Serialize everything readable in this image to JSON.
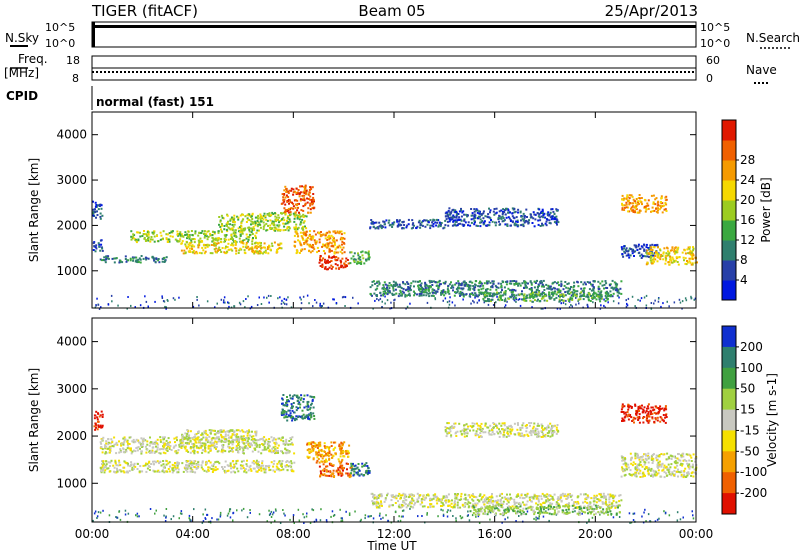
{
  "header": {
    "station": "TIGER (fitACF)",
    "beam": "Beam 05",
    "date": "25/Apr/2013"
  },
  "status_panels": {
    "nsky_label": "N.Sky",
    "nsky_ticks": [
      "10^5",
      "10^0"
    ],
    "nsearch_label": "N.Search",
    "nsearch_ticks": [
      "10^5",
      "10^0"
    ],
    "freq_label_1": "Freq.",
    "freq_label_2": "[MHz]",
    "freq_ticks": [
      "18",
      "8"
    ],
    "nave_label": "Nave",
    "nave_ticks": [
      "60",
      "0"
    ],
    "cpid_label": "CPID",
    "cpid_value": "normal (fast) 151"
  },
  "chart_data": [
    {
      "type": "heatmap",
      "name": "power",
      "ylabel": "Slant Range [km]",
      "ylim": [
        180,
        4500
      ],
      "yticks": [
        "1000",
        "2000",
        "3000",
        "4000"
      ],
      "xlim_hours": [
        0,
        24
      ],
      "colorbar_label": "Power [dB]",
      "colorbar_ticks": [
        "4",
        "8",
        "12",
        "16",
        "20",
        "24",
        "28"
      ],
      "colorbar_colors": [
        "#0018e0",
        "#2840a8",
        "#2f7f6e",
        "#3aa840",
        "#9ccc20",
        "#f5d800",
        "#f59a00",
        "#f06000",
        "#e01800"
      ],
      "features": [
        {
          "t": [
            0.0,
            0.4
          ],
          "r": [
            2150,
            2550
          ],
          "level": 1
        },
        {
          "t": [
            0.0,
            0.4
          ],
          "r": [
            1450,
            1700
          ],
          "level": 1
        },
        {
          "t": [
            0.3,
            3.0
          ],
          "r": [
            1200,
            1350
          ],
          "level": 2
        },
        {
          "t": [
            1.5,
            6.5
          ],
          "r": [
            1650,
            1900
          ],
          "level": 4
        },
        {
          "t": [
            3.5,
            7.5
          ],
          "r": [
            1400,
            1650
          ],
          "level": 5
        },
        {
          "t": [
            5.0,
            8.5
          ],
          "r": [
            1900,
            2300
          ],
          "level": 4
        },
        {
          "t": [
            7.5,
            8.8
          ],
          "r": [
            2300,
            2900
          ],
          "level": 7
        },
        {
          "t": [
            8.0,
            10.0
          ],
          "r": [
            1400,
            1900
          ],
          "level": 6
        },
        {
          "t": [
            9.0,
            10.2
          ],
          "r": [
            1050,
            1350
          ],
          "level": 8
        },
        {
          "t": [
            10.2,
            11.0
          ],
          "r": [
            1150,
            1450
          ],
          "level": 3
        },
        {
          "t": [
            11.0,
            14.0
          ],
          "r": [
            1950,
            2150
          ],
          "level": 1
        },
        {
          "t": [
            14.0,
            18.5
          ],
          "r": [
            2000,
            2400
          ],
          "level": 1
        },
        {
          "t": [
            11.0,
            21.0
          ],
          "r": [
            450,
            800
          ],
          "level": 2
        },
        {
          "t": [
            15.5,
            20.5
          ],
          "r": [
            350,
            550
          ],
          "level": 3
        },
        {
          "t": [
            21.0,
            22.8
          ],
          "r": [
            2300,
            2700
          ],
          "level": 6
        },
        {
          "t": [
            21.0,
            22.5
          ],
          "r": [
            1300,
            1600
          ],
          "level": 1
        },
        {
          "t": [
            22.0,
            24.0
          ],
          "r": [
            1150,
            1550
          ],
          "level": 5
        }
      ]
    },
    {
      "type": "heatmap",
      "name": "velocity",
      "ylabel": "Slant Range [km]",
      "ylim": [
        180,
        4500
      ],
      "yticks": [
        "1000",
        "2000",
        "3000",
        "4000"
      ],
      "xlim_hours": [
        0,
        24
      ],
      "xticks": [
        "00:00",
        "04:00",
        "08:00",
        "12:00",
        "16:00",
        "20:00",
        "00:00"
      ],
      "xlabel": "Time UT",
      "colorbar_label": "Velocity [m s-1]",
      "colorbar_ticks": [
        "200",
        "100",
        "50",
        "15",
        "-15",
        "-50",
        "-100",
        "-200"
      ],
      "colorbar_colors": [
        "#1030d0",
        "#2f7f6e",
        "#40a040",
        "#a0d040",
        "#c8c8c0",
        "#f5e000",
        "#f5a000",
        "#f06000",
        "#e01000"
      ],
      "features": [
        {
          "t": [
            0.0,
            0.4
          ],
          "r": [
            2150,
            2550
          ],
          "level": 8
        },
        {
          "t": [
            0.3,
            8.0
          ],
          "r": [
            1650,
            2000
          ],
          "level": 4
        },
        {
          "t": [
            0.3,
            8.0
          ],
          "r": [
            1250,
            1500
          ],
          "level": 4
        },
        {
          "t": [
            3.5,
            6.5
          ],
          "r": [
            1850,
            2150
          ],
          "level": 4
        },
        {
          "t": [
            7.5,
            8.8
          ],
          "r": [
            2350,
            2900
          ],
          "level": 1
        },
        {
          "t": [
            8.5,
            10.2
          ],
          "r": [
            1450,
            1900
          ],
          "level": 6
        },
        {
          "t": [
            9.0,
            10.3
          ],
          "r": [
            1150,
            1450
          ],
          "level": 7
        },
        {
          "t": [
            10.2,
            11.0
          ],
          "r": [
            1150,
            1450
          ],
          "level": 1
        },
        {
          "t": [
            11.0,
            21.0
          ],
          "r": [
            500,
            800
          ],
          "level": 4
        },
        {
          "t": [
            15.0,
            21.0
          ],
          "r": [
            350,
            550
          ],
          "level": 3
        },
        {
          "t": [
            14.0,
            18.5
          ],
          "r": [
            2000,
            2300
          ],
          "level": 4
        },
        {
          "t": [
            21.0,
            22.8
          ],
          "r": [
            2300,
            2700
          ],
          "level": 8
        },
        {
          "t": [
            21.0,
            24.0
          ],
          "r": [
            1150,
            1650
          ],
          "level": 4
        }
      ]
    }
  ],
  "colors": {
    "border": "#000000",
    "background": "#ffffff",
    "empty_scatter": "#808080"
  }
}
